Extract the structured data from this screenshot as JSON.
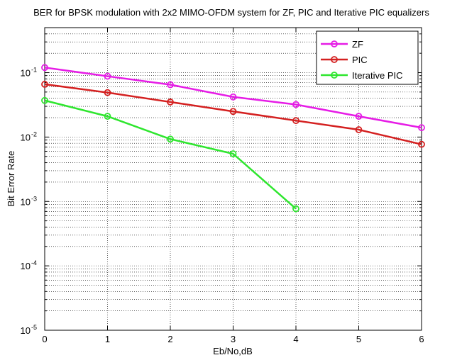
{
  "chart_data": {
    "type": "line",
    "title": "BER for BPSK modulation with 2x2 MIMO-OFDM system for ZF, PIC and Iterative PIC equalizers",
    "xlabel": "Eb/No,dB",
    "ylabel": "Bit Error Rate",
    "xlim": [
      0,
      6
    ],
    "ylim": [
      1e-05,
      0.5
    ],
    "yscale": "log",
    "grid": true,
    "legend_position": "top-right",
    "x_ticks": [
      "0",
      "1",
      "2",
      "3",
      "4",
      "5",
      "6"
    ],
    "y_ticks": [
      {
        "base": "10",
        "exp": "-1",
        "value": 0.1
      },
      {
        "base": "10",
        "exp": "-2",
        "value": 0.01
      },
      {
        "base": "10",
        "exp": "-3",
        "value": 0.001
      },
      {
        "base": "10",
        "exp": "-4",
        "value": 0.0001
      },
      {
        "base": "10",
        "exp": "-5",
        "value": 1e-05
      }
    ],
    "series": [
      {
        "name": "ZF",
        "color": "#e61ce6",
        "x": [
          0,
          1,
          2,
          3,
          4,
          5,
          6
        ],
        "y": [
          0.12,
          0.088,
          0.065,
          0.042,
          0.032,
          0.021,
          0.014
        ]
      },
      {
        "name": "PIC",
        "color": "#d42020",
        "x": [
          0,
          1,
          2,
          3,
          4,
          5,
          6
        ],
        "y": [
          0.066,
          0.049,
          0.035,
          0.025,
          0.018,
          0.013,
          0.0077
        ]
      },
      {
        "name": "Iterative PIC",
        "color": "#2ee62e",
        "x": [
          0,
          1,
          2,
          3,
          4
        ],
        "y": [
          0.037,
          0.021,
          0.0093,
          0.0055,
          0.00077
        ]
      }
    ]
  }
}
